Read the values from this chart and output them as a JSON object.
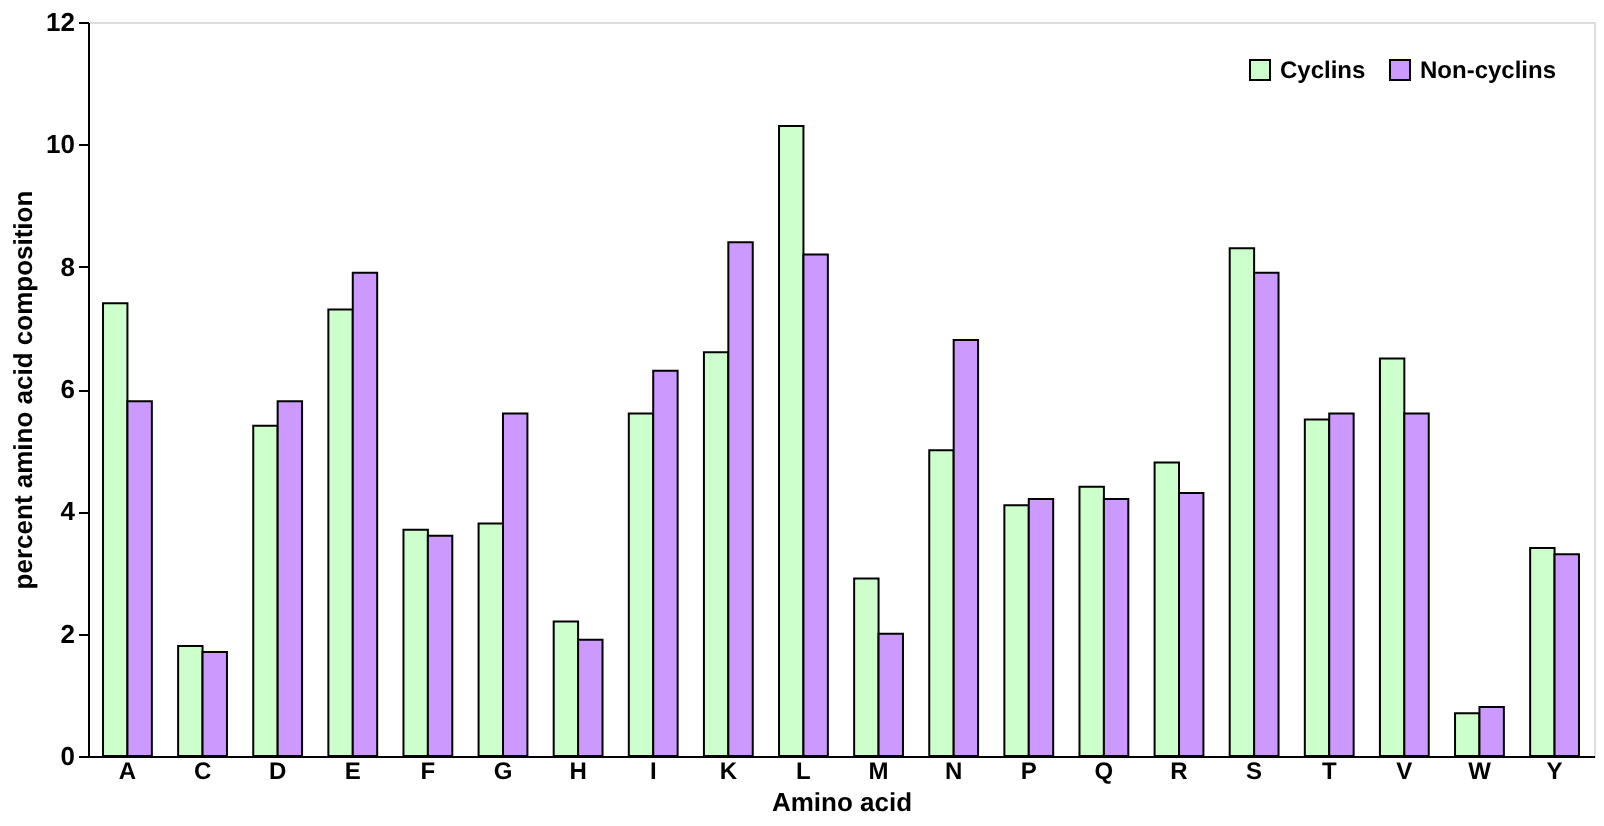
{
  "chart_data": {
    "type": "bar",
    "xlabel": "Amino acid",
    "ylabel": "percent amino acid composition",
    "categories": [
      "A",
      "C",
      "D",
      "E",
      "F",
      "G",
      "H",
      "I",
      "K",
      "L",
      "M",
      "N",
      "P",
      "Q",
      "R",
      "S",
      "T",
      "V",
      "W",
      "Y"
    ],
    "series": [
      {
        "name": "Cyclins",
        "color": "#ccffcc",
        "values": [
          7.4,
          1.8,
          5.4,
          7.3,
          3.7,
          3.8,
          2.2,
          5.6,
          6.6,
          10.3,
          2.9,
          5.0,
          4.1,
          4.4,
          4.8,
          8.3,
          5.5,
          6.5,
          0.7,
          3.4
        ]
      },
      {
        "name": "Non-cyclins",
        "color": "#cc99ff",
        "values": [
          5.8,
          1.7,
          5.8,
          7.9,
          3.6,
          5.6,
          1.9,
          6.3,
          8.4,
          8.2,
          2.0,
          6.8,
          4.2,
          4.2,
          4.3,
          7.9,
          5.6,
          5.6,
          0.8,
          3.3
        ]
      }
    ],
    "ylim": [
      0,
      12
    ],
    "yticks": [
      0,
      2,
      4,
      6,
      8,
      10,
      12
    ],
    "grid": false,
    "legend": "top right"
  }
}
